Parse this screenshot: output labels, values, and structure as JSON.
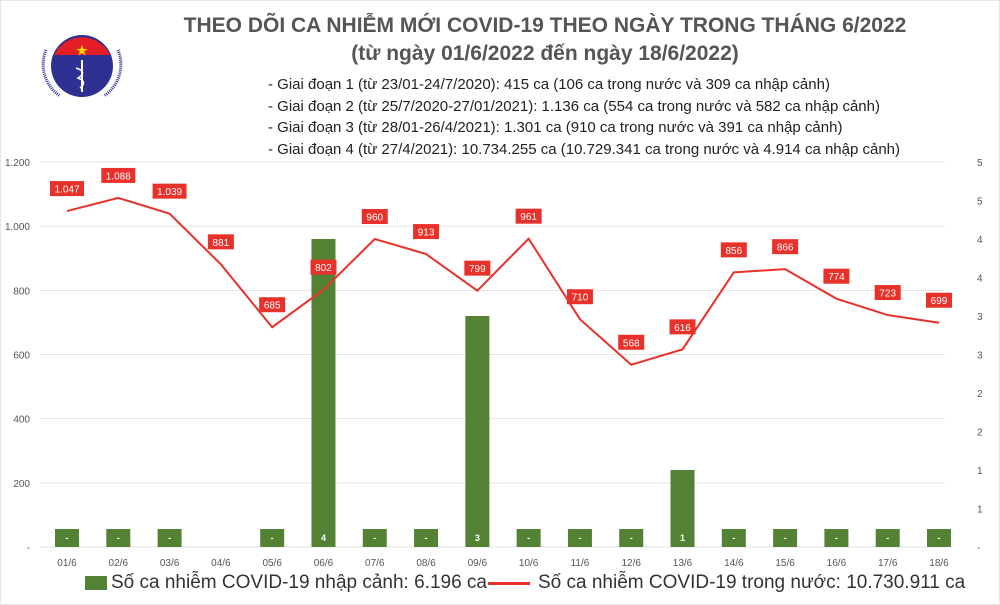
{
  "logo": {
    "text_top": "BỘ Y TẾ",
    "text_bottom": "MINISTRY OF HEALTH"
  },
  "title": {
    "line1": "THEO DÕI CA NHIỄM MỚI COVID-19 THEO NGÀY TRONG THÁNG 6/2022",
    "line2": "(từ ngày 01/6/2022 đến ngày 18/6/2022)"
  },
  "notes": [
    "- Giai đoạn 1 (từ 23/01-24/7/2020): 415 ca (106 ca trong nước và 309 ca nhập cảnh)",
    "- Giai đoạn 2 (từ 25/7/2020-27/01/2021): 1.136 ca (554 ca trong nước và 582 ca nhập cảnh)",
    "- Giai đoạn 3 (từ 28/01-26/4/2021): 1.301 ca (910 ca trong nước và 391 ca nhập cảnh)",
    "- Giai đoạn 4 (từ 27/4/2021): 10.734.255 ca (10.729.341 ca trong nước và 4.914 ca nhập cảnh)"
  ],
  "chart_data": {
    "type": "bar+line",
    "categories": [
      "01/6",
      "02/6",
      "03/6",
      "04/6",
      "05/6",
      "06/6",
      "07/6",
      "08/6",
      "09/6",
      "10/6",
      "11/6",
      "12/6",
      "13/6",
      "14/6",
      "15/6",
      "16/6",
      "17/6",
      "18/6"
    ],
    "left_axis": {
      "ylim": [
        0,
        1200
      ],
      "ticks": [
        0,
        200,
        400,
        600,
        800,
        1000,
        1200
      ],
      "tick_labels": [
        "-",
        "200",
        "400",
        "600",
        "800",
        "1.000",
        "1.200"
      ]
    },
    "right_axis": {
      "ylim": [
        0,
        5
      ],
      "ticks": [
        0,
        0.5,
        1,
        1.5,
        2,
        2.5,
        3,
        3.5,
        4,
        4.5,
        5
      ],
      "tick_labels": [
        "-",
        "1",
        "1",
        "2",
        "2",
        "3",
        "3",
        "4",
        "4",
        "5",
        "5"
      ]
    },
    "grid": true,
    "legend_placement": "bottom",
    "series": [
      {
        "name": "Số ca nhiễm COVID-19 nhập cảnh: 6.196 ca",
        "type": "bar",
        "axis": "right",
        "color": "#548235",
        "values": [
          0,
          0,
          0,
          null,
          0,
          4,
          0,
          0,
          3,
          0,
          0,
          0,
          1,
          0,
          0,
          0,
          0,
          0
        ],
        "labels": [
          "-",
          "-",
          "-",
          "",
          "-",
          "4",
          "-",
          "-",
          "3",
          "-",
          "-",
          "-",
          "1",
          "-",
          "-",
          "-",
          "-",
          "-"
        ]
      },
      {
        "name": "Số ca nhiễm COVID-19 trong nước: 10.730.911 ca",
        "type": "line",
        "axis": "left",
        "color": "#e8312a",
        "values": [
          1047,
          1088,
          1039,
          881,
          685,
          802,
          960,
          913,
          799,
          961,
          710,
          568,
          616,
          856,
          866,
          774,
          723,
          699
        ],
        "labels": [
          "1.047",
          "1.088",
          "1.039",
          "881",
          "685",
          "802",
          "960",
          "913",
          "799",
          "961",
          "710",
          "568",
          "616",
          "856",
          "866",
          "774",
          "723",
          "699"
        ]
      }
    ]
  }
}
